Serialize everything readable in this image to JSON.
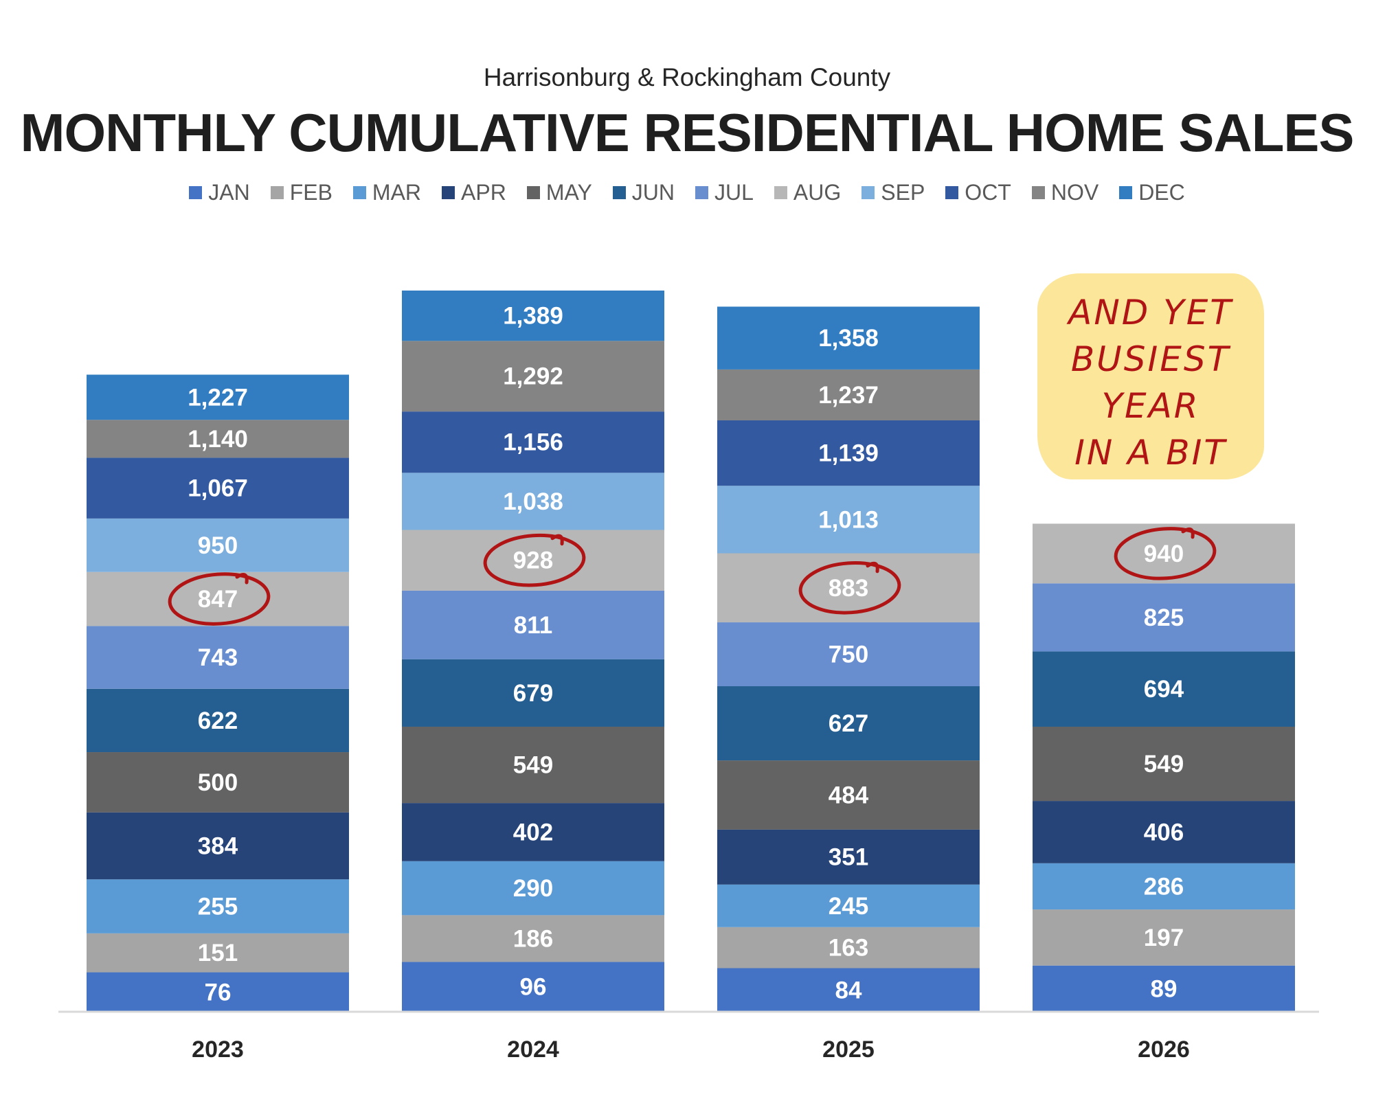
{
  "chart_data": {
    "type": "bar",
    "stacked": true,
    "subtitle": "Harrisonburg & Rockingham County",
    "title": "MONTHLY CUMULATIVE RESIDENTIAL HOME SALES",
    "categories": [
      "2023",
      "2024",
      "2025",
      "2026"
    ],
    "series": [
      {
        "name": "JAN",
        "color": "#4472c4",
        "values": [
          76,
          96,
          84,
          89
        ]
      },
      {
        "name": "FEB",
        "color": "#a5a5a5",
        "values": [
          151,
          186,
          163,
          197
        ]
      },
      {
        "name": "MAR",
        "color": "#5b9bd5",
        "values": [
          255,
          290,
          245,
          286
        ]
      },
      {
        "name": "APR",
        "color": "#264478",
        "values": [
          384,
          402,
          351,
          406
        ]
      },
      {
        "name": "MAY",
        "color": "#636363",
        "values": [
          500,
          549,
          484,
          549
        ]
      },
      {
        "name": "JUN",
        "color": "#255e91",
        "values": [
          622,
          679,
          627,
          694
        ]
      },
      {
        "name": "JUL",
        "color": "#698ed0",
        "values": [
          743,
          811,
          750,
          825
        ]
      },
      {
        "name": "AUG",
        "color": "#b7b7b7",
        "values": [
          847,
          928,
          883,
          940
        ]
      },
      {
        "name": "SEP",
        "color": "#7cafdd",
        "values": [
          950,
          1038,
          1013,
          null
        ]
      },
      {
        "name": "OCT",
        "color": "#335aa1",
        "values": [
          1067,
          1156,
          1139,
          null
        ]
      },
      {
        "name": "NOV",
        "color": "#848484",
        "values": [
          1140,
          1292,
          1237,
          null
        ]
      },
      {
        "name": "DEC",
        "color": "#327dc2",
        "values": [
          1227,
          1389,
          1358,
          null
        ]
      }
    ],
    "value_format": "thousands-comma",
    "legend_position": "top",
    "grid": false,
    "highlighted": [
      {
        "category": "2023",
        "series": "AUG"
      },
      {
        "category": "2024",
        "series": "AUG"
      },
      {
        "category": "2025",
        "series": "AUG"
      },
      {
        "category": "2026",
        "series": "AUG"
      }
    ],
    "annotation": {
      "lines": [
        "AND YET",
        "BUSIEST",
        "YEAR",
        "IN A BIT"
      ],
      "color": "#b01414",
      "background": "#fbe69a"
    }
  }
}
